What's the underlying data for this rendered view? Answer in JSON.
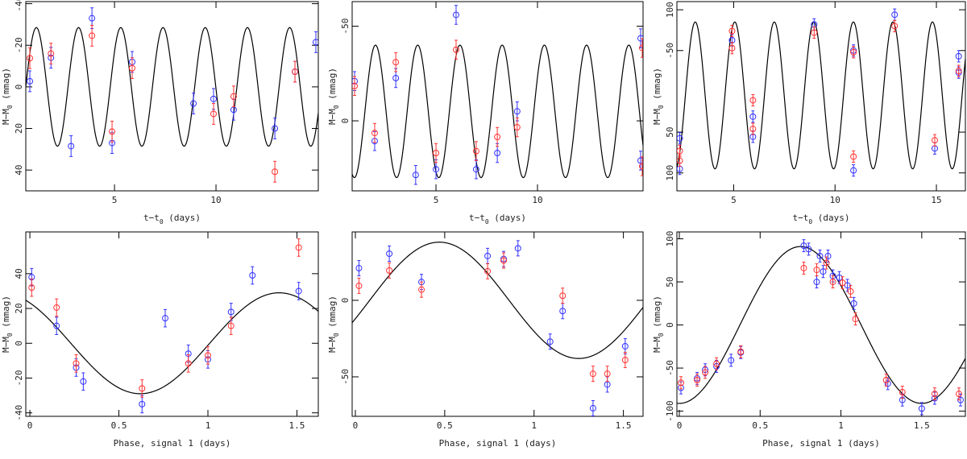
{
  "chart_data": [
    {
      "type": "scatter",
      "xlabel": [
        "t−t",
        "0",
        " (days)"
      ],
      "ylabel": [
        "M−M",
        "0",
        " (mmag)"
      ],
      "xlim": [
        0.63,
        15.04
      ],
      "xticks": [
        5,
        10
      ],
      "ylim": [
        -41,
        50
      ],
      "yticks": [
        -40,
        -20,
        0,
        20,
        40
      ],
      "y_inverted": true,
      "model": {
        "amplitude": 28.5,
        "period": 2.08,
        "t_max": 2.19,
        "offset": 0,
        "color": "#000000"
      },
      "series": [
        {
          "color": "#3333ff",
          "error": 5,
          "x": [
            0.83,
            1.87,
            2.86,
            3.89,
            4.88,
            5.87,
            8.89,
            9.88,
            10.87,
            12.9,
            13.89,
            14.92
          ],
          "values": [
            -2.7,
            -14,
            28.5,
            -33,
            27,
            -12,
            8,
            5.8,
            11,
            20,
            -7.3,
            -21.5
          ]
        },
        {
          "color": "#ff3333",
          "error": 5,
          "x": [
            0.83,
            1.87,
            3.89,
            4.88,
            5.87,
            9.88,
            10.87,
            12.9,
            13.89
          ],
          "values": [
            -13.8,
            -16,
            -24.6,
            21.5,
            -9,
            13,
            4.6,
            40.8,
            -7.3
          ]
        }
      ]
    },
    {
      "type": "scatter",
      "xlabel": [
        "t−t",
        "0",
        " (days)"
      ],
      "ylabel": [
        "M−M",
        "0",
        " (mmag)"
      ],
      "xlim": [
        0.87,
        15.2
      ],
      "xticks": [
        5,
        10
      ],
      "ylim": [
        -63,
        37
      ],
      "yticks": [
        -50,
        0
      ],
      "y_inverted": true,
      "model": {
        "amplitude": 35,
        "period": 2.08,
        "t_max": 3.06,
        "offset": -5,
        "color": "#000000"
      },
      "series": [
        {
          "color": "#3333ff",
          "error": 5,
          "x": [
            0.99,
            1.98,
            3.02,
            4.0,
            5.0,
            5.99,
            6.98,
            8.02,
            9.0,
            15.08,
            15.08
          ],
          "values": [
            -21,
            10.7,
            -22.6,
            28.6,
            25.6,
            -56,
            25.6,
            17,
            -5,
            -43.6,
            21
          ]
        },
        {
          "color": "#ff3333",
          "error": 5,
          "x": [
            0.99,
            1.98,
            3.02,
            5.0,
            5.99,
            6.98,
            8.02,
            9.0,
            15.16,
            15.16
          ],
          "values": [
            -18.4,
            6.4,
            -31,
            17,
            -37.6,
            16,
            8.5,
            3.4,
            -38.5,
            24
          ]
        }
      ]
    },
    {
      "type": "scatter",
      "xlabel": [
        "t−t",
        "0",
        " (days)"
      ],
      "ylabel": [
        "M−M",
        "0",
        " (mmag)"
      ],
      "xlim": [
        2.2,
        16.43
      ],
      "xticks": [
        5,
        10,
        15
      ],
      "ylim": [
        -110,
        122
      ],
      "yticks": [
        {
          "value": -100,
          "label": "100"
        },
        -50,
        50,
        100
      ],
      "y_inverted": true,
      "model": {
        "amplitude": 90,
        "period": 1.95,
        "t_max": 4.08,
        "offset": 5,
        "color": "#000000"
      },
      "series": [
        {
          "color": "#3333ff",
          "error": 7,
          "x": [
            2.34,
            2.34,
            4.92,
            5.95,
            5.95,
            8.97,
            10.91,
            10.91,
            12.94,
            14.92,
            16.1,
            16.1
          ],
          "values": [
            57.6,
            95,
            -62.6,
            55.7,
            31,
            -82,
            97,
            -50,
            -94,
            70,
            -43,
            -23
          ]
        },
        {
          "color": "#ff3333",
          "error": 7,
          "x": [
            2.34,
            2.34,
            4.92,
            4.92,
            5.95,
            5.95,
            8.97,
            10.91,
            10.91,
            12.94,
            14.92,
            16.1
          ],
          "values": [
            73,
            85,
            -74,
            -53,
            11,
            46,
            -72,
            80,
            -48,
            -80,
            60,
            -25
          ]
        }
      ]
    },
    {
      "type": "scatter",
      "xlabel": [
        "Phase, signal 1 (days)"
      ],
      "ylabel": [
        "M−M",
        "0",
        " (mmag)"
      ],
      "xlim": [
        -0.023,
        1.62
      ],
      "xticks": [
        0,
        0.5,
        1,
        1.5
      ],
      "ylim": [
        -42,
        64
      ],
      "yticks": [
        -40,
        -20,
        0,
        20,
        40
      ],
      "y_inverted": false,
      "model": {
        "amplitude": 29,
        "period": 1.56,
        "t_max": 1.4,
        "offset": 0,
        "color": "#000000"
      },
      "series": [
        {
          "color": "#3333ff",
          "error": 5,
          "x": [
            0.01,
            0.15,
            0.26,
            0.3,
            0.76,
            0.63,
            0.89,
            1.0,
            1.13,
            1.25,
            1.51
          ],
          "values": [
            38,
            10,
            -14,
            -22,
            14.4,
            -35,
            -6,
            -9.3,
            18,
            39,
            30
          ]
        },
        {
          "color": "#ff3333",
          "error": 5,
          "x": [
            0.01,
            0.15,
            0.26,
            0.63,
            0.89,
            1.0,
            1.13,
            1.51
          ],
          "values": [
            32,
            20.5,
            -11.6,
            -26,
            -11.6,
            -7,
            10,
            55
          ]
        }
      ]
    },
    {
      "type": "scatter",
      "xlabel": [
        "Phase, signal 1 (days)"
      ],
      "ylabel": [
        "M−M",
        "0",
        " (mmag)"
      ],
      "xlim": [
        -0.018,
        1.61
      ],
      "xticks": [
        0,
        0.5,
        1,
        1.5
      ],
      "ylim": [
        -75.8,
        44.7
      ],
      "yticks": [
        -50,
        0
      ],
      "y_inverted": false,
      "model": {
        "amplitude": 38,
        "period": 1.56,
        "t_max": 0.47,
        "offset": 0,
        "color": "#000000"
      },
      "series": [
        {
          "color": "#3333ff",
          "error": 5,
          "x": [
            0.02,
            0.19,
            0.37,
            0.74,
            0.83,
            0.91,
            1.09,
            1.16,
            1.33,
            1.41,
            1.51
          ],
          "values": [
            21,
            30.5,
            12,
            29,
            27,
            34,
            -27,
            -7,
            -70.5,
            -55,
            -30
          ]
        },
        {
          "color": "#ff3333",
          "error": 5,
          "x": [
            0.02,
            0.19,
            0.37,
            0.74,
            0.83,
            1.16,
            1.33,
            1.41,
            1.51
          ],
          "values": [
            9.5,
            19.5,
            7,
            19,
            26,
            3,
            -48,
            -48,
            -39
          ]
        }
      ]
    },
    {
      "type": "scatter",
      "xlabel": [
        "Phase, signal 1 (days)"
      ],
      "ylabel": [
        "M−M",
        "0",
        " (mmag)"
      ],
      "xlim": [
        -0.015,
        1.77
      ],
      "xticks": [
        0,
        0.5,
        1,
        1.5
      ],
      "ylim": [
        -106,
        108
      ],
      "yticks": [
        -100,
        -50,
        0,
        50,
        100
      ],
      "y_inverted": false,
      "model": {
        "amplitude": 91,
        "period": 1.5,
        "t_max": 0.75,
        "offset": 0,
        "color": "#000000"
      },
      "series": [
        {
          "color": "#3333ff",
          "error": 7,
          "x": [
            0.01,
            0.11,
            0.16,
            0.23,
            0.32,
            0.38,
            0.77,
            0.8,
            0.85,
            0.87,
            0.89,
            0.92,
            0.95,
            0.99,
            1.04,
            1.08,
            1.29,
            1.38,
            1.5,
            1.58,
            1.74
          ],
          "values": [
            -73,
            -62,
            -52,
            -48,
            -41,
            -32,
            92,
            88,
            50,
            80,
            62,
            80,
            57,
            55,
            46,
            25,
            -68,
            -87,
            -97,
            -85,
            -87
          ]
        },
        {
          "color": "#ff3333",
          "error": 7,
          "x": [
            0.01,
            0.11,
            0.16,
            0.23,
            0.38,
            0.77,
            0.85,
            0.91,
            0.95,
            1.01,
            1.06,
            1.09,
            1.28,
            1.38,
            1.58,
            1.73
          ],
          "values": [
            -67,
            -64,
            -55,
            -45,
            -31,
            66,
            64,
            72,
            50,
            49,
            39,
            7,
            -64,
            -78,
            -80,
            -80
          ]
        }
      ]
    }
  ]
}
